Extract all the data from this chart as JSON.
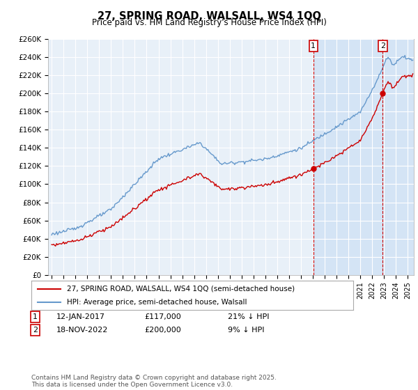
{
  "title": "27, SPRING ROAD, WALSALL, WS4 1QQ",
  "subtitle": "Price paid vs. HM Land Registry's House Price Index (HPI)",
  "ylim": [
    0,
    260000
  ],
  "yticks": [
    0,
    20000,
    40000,
    60000,
    80000,
    100000,
    120000,
    140000,
    160000,
    180000,
    200000,
    220000,
    240000,
    260000
  ],
  "ytick_labels": [
    "£0",
    "£20K",
    "£40K",
    "£60K",
    "£80K",
    "£100K",
    "£120K",
    "£140K",
    "£160K",
    "£180K",
    "£200K",
    "£220K",
    "£240K",
    "£260K"
  ],
  "hpi_color": "#6699cc",
  "price_color": "#cc0000",
  "marker1_date": 2017.04,
  "marker1_price": 117000,
  "marker1_label": "1",
  "marker2_date": 2022.88,
  "marker2_price": 200000,
  "marker2_label": "2",
  "shade_color": "#ddeeff",
  "legend_entry1": "27, SPRING ROAD, WALSALL, WS4 1QQ (semi-detached house)",
  "legend_entry2": "HPI: Average price, semi-detached house, Walsall",
  "table_row1_num": "1",
  "table_row1_date": "12-JAN-2017",
  "table_row1_price": "£117,000",
  "table_row1_hpi": "21% ↓ HPI",
  "table_row2_num": "2",
  "table_row2_date": "18-NOV-2022",
  "table_row2_price": "£200,000",
  "table_row2_hpi": "9% ↓ HPI",
  "footer": "Contains HM Land Registry data © Crown copyright and database right 2025.\nThis data is licensed under the Open Government Licence v3.0.",
  "bg_color": "#ffffff",
  "plot_bg_color": "#e8f0f8",
  "grid_color": "#ffffff",
  "xlim_start": 1994.7,
  "xlim_end": 2025.5
}
